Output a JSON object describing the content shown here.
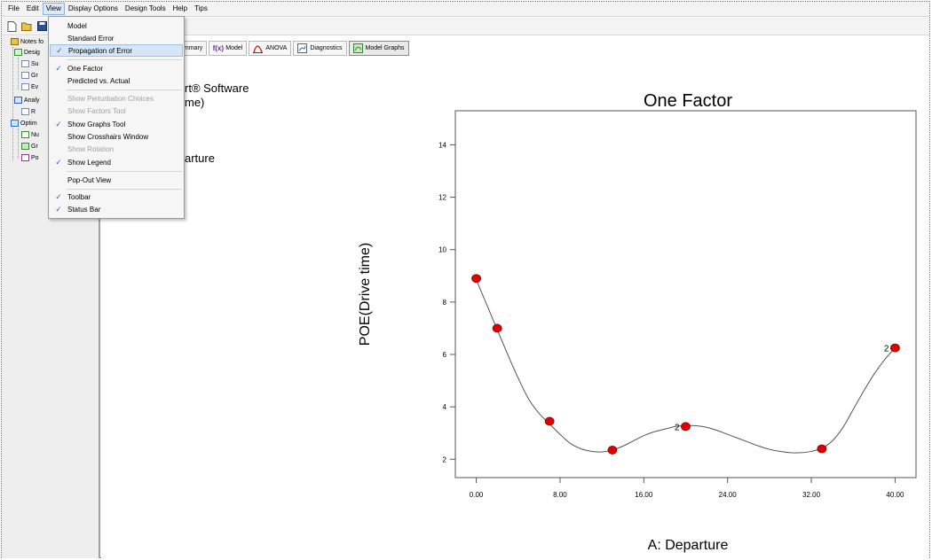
{
  "menubar": {
    "items": [
      "File",
      "Edit",
      "View",
      "Display Options",
      "Design Tools",
      "Help",
      "Tips"
    ],
    "active_index": 2
  },
  "view_menu": {
    "items": [
      {
        "label": "Model",
        "checked": false,
        "disabled": false
      },
      {
        "label": "Standard Error",
        "checked": false,
        "disabled": false
      },
      {
        "label": "Propagation of Error",
        "checked": true,
        "disabled": false,
        "highlighted": true
      },
      {
        "label": "One Factor",
        "checked": true,
        "disabled": false
      },
      {
        "label": "Predicted vs. Actual",
        "checked": false,
        "disabled": false
      },
      {
        "label": "Show Perturbation Choices",
        "checked": false,
        "disabled": true
      },
      {
        "label": "Show Factors Tool",
        "checked": false,
        "disabled": true
      },
      {
        "label": "Show Graphs Tool",
        "checked": true,
        "disabled": false
      },
      {
        "label": "Show Crosshairs Window",
        "checked": false,
        "disabled": false
      },
      {
        "label": "Show Rotation",
        "checked": false,
        "disabled": true
      },
      {
        "label": "Show Legend",
        "checked": true,
        "disabled": false
      },
      {
        "label": "Pop-Out View",
        "checked": false,
        "disabled": false
      },
      {
        "label": "Toolbar",
        "checked": true,
        "disabled": false
      },
      {
        "label": "Status Bar",
        "checked": true,
        "disabled": false
      }
    ]
  },
  "tree": {
    "root": "Notes fo",
    "design": "Desig",
    "design_children": [
      "Su",
      "Gr",
      "Ev"
    ],
    "analysis": "Analy",
    "analysis_children": [
      "R"
    ],
    "optimization": "Optim",
    "optimization_children": [
      "Nu",
      "Gr",
      "Po"
    ]
  },
  "tabs": [
    {
      "label": "ummary",
      "icon": "summary-icon"
    },
    {
      "label": "Model",
      "icon": "fx-icon",
      "icon_text": "f(x)"
    },
    {
      "label": "ANOVA",
      "icon": "anova-icon"
    },
    {
      "label": "Diagnostics",
      "icon": "diagnostics-icon"
    },
    {
      "label": "Model Graphs",
      "icon": "model-graphs-icon",
      "active": true
    }
  ],
  "side_panel": {
    "line1": "rt® Software",
    "line2": "me)",
    "line3": "arture"
  },
  "chart_data": {
    "type": "line",
    "title": "One Factor",
    "xlabel": "A: Departure",
    "ylabel": "POE(Drive time)",
    "xlim": [
      -2,
      42
    ],
    "ylim": [
      1.3,
      15.3
    ],
    "x_ticks": [
      0,
      8,
      16,
      24,
      32,
      40
    ],
    "x_tick_labels": [
      "0.00",
      "8.00",
      "16.00",
      "24.00",
      "32.00",
      "40.00"
    ],
    "y_ticks": [
      2,
      4,
      6,
      8,
      10,
      12,
      14
    ],
    "y_tick_labels": [
      "2",
      "4",
      "6",
      "8",
      "10",
      "12",
      "14"
    ],
    "curve": {
      "x": [
        0,
        1,
        2,
        3,
        4,
        5,
        6,
        7,
        8,
        9,
        10,
        11,
        12,
        13,
        14,
        15,
        16,
        17,
        18,
        19,
        20,
        21,
        22,
        23,
        24,
        25,
        26,
        27,
        28,
        29,
        30,
        31,
        32,
        33,
        34,
        35,
        36,
        37,
        38,
        39,
        40
      ],
      "y": [
        8.85,
        7.9,
        6.95,
        6.0,
        5.1,
        4.3,
        3.75,
        3.35,
        2.95,
        2.6,
        2.4,
        2.3,
        2.28,
        2.35,
        2.5,
        2.7,
        2.9,
        3.05,
        3.15,
        3.25,
        3.28,
        3.28,
        3.22,
        3.1,
        2.95,
        2.8,
        2.65,
        2.5,
        2.38,
        2.3,
        2.25,
        2.25,
        2.3,
        2.42,
        2.7,
        3.2,
        3.9,
        4.6,
        5.25,
        5.8,
        6.25
      ]
    },
    "points": {
      "x": [
        0,
        2,
        7,
        13,
        20,
        33,
        40
      ],
      "y": [
        8.9,
        7.0,
        3.45,
        2.35,
        3.25,
        2.4,
        6.25
      ],
      "labels": [
        "",
        "",
        "",
        "",
        "2",
        "",
        "2"
      ]
    },
    "point_color": "#e00000",
    "line_color": "#555555",
    "legend": "none",
    "grid": false
  }
}
